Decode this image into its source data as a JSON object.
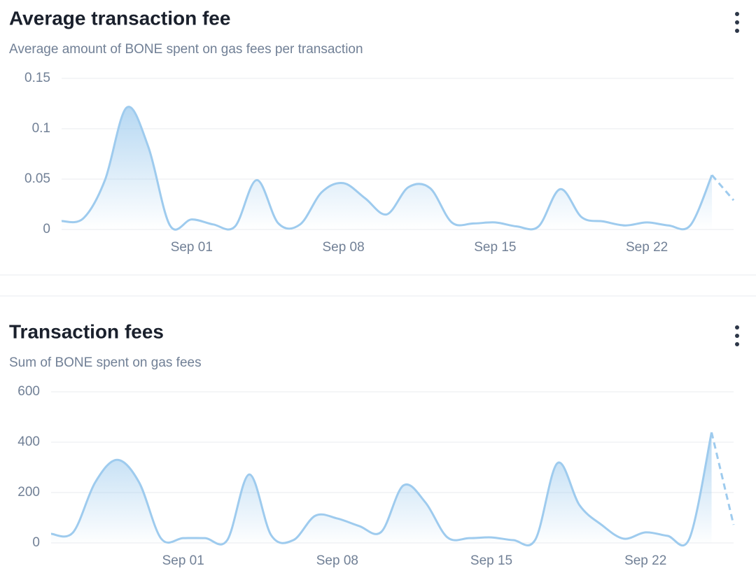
{
  "chart_data": [
    {
      "type": "line",
      "title": "Average transaction fee",
      "subtitle": "Average amount of BONE spent on gas fees per transaction",
      "categories": [
        null,
        null,
        null,
        null,
        null,
        null,
        "Sep 01",
        null,
        null,
        null,
        null,
        null,
        null,
        "Sep 08",
        null,
        null,
        null,
        null,
        null,
        null,
        "Sep 15",
        null,
        null,
        null,
        null,
        null,
        null,
        "Sep 22",
        null,
        null,
        null,
        null
      ],
      "series": [
        {
          "color": "#9ecbee",
          "values": [
            0.0083,
            0.011,
            0.049,
            0.121,
            0.082,
            0.004,
            0.01,
            0.005,
            0.003,
            0.049,
            0.006,
            0.005,
            0.037,
            0.046,
            0.031,
            0.015,
            0.042,
            0.041,
            0.007,
            0.006,
            0.007,
            0.003,
            0.003,
            0.04,
            0.012,
            0.008,
            0.004,
            0.007,
            0.004,
            0.004,
            0.054,
            0.029
          ]
        }
      ],
      "ylim": [
        0,
        0.15
      ],
      "yticks": [
        0,
        0.05,
        0.1,
        0.15
      ],
      "grid": true,
      "last_segment_dashed": true
    },
    {
      "type": "line",
      "title": "Transaction fees",
      "subtitle": "Sum of BONE spent on gas fees",
      "categories": [
        null,
        null,
        null,
        null,
        null,
        null,
        "Sep 01",
        null,
        null,
        null,
        null,
        null,
        null,
        "Sep 08",
        null,
        null,
        null,
        null,
        null,
        null,
        "Sep 15",
        null,
        null,
        null,
        null,
        null,
        null,
        "Sep 22",
        null,
        null,
        null,
        null
      ],
      "series": [
        {
          "color": "#9ecbee",
          "values": [
            36,
            42,
            240,
            330,
            240,
            17,
            19,
            19,
            11,
            272,
            30,
            11,
            108,
            97,
            67,
            44,
            228,
            161,
            22,
            19,
            22,
            11,
            14,
            317,
            150,
            72,
            17,
            42,
            28,
            19,
            439,
            72
          ]
        }
      ],
      "ylim": [
        0,
        600
      ],
      "yticks": [
        0,
        200,
        400,
        600
      ],
      "grid": true,
      "last_segment_dashed": true
    }
  ]
}
